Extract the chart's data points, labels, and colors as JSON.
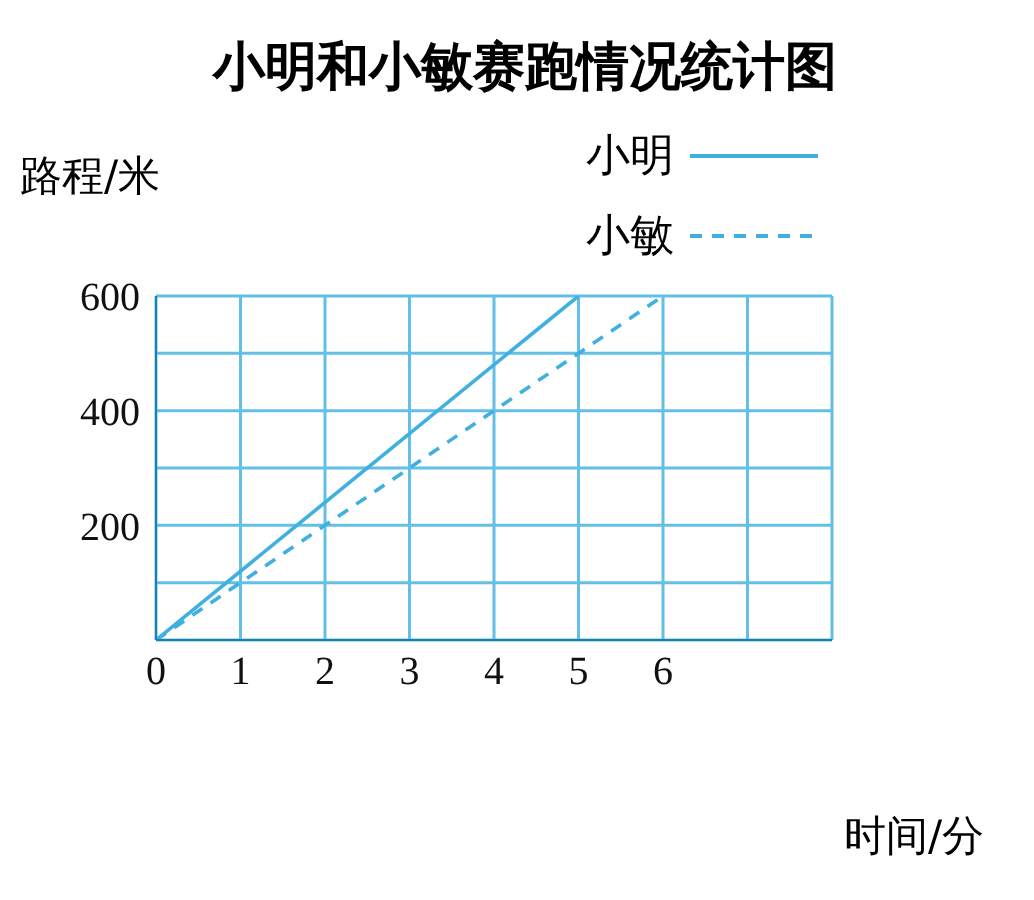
{
  "chart_data": {
    "type": "line",
    "title": "小明和小敏赛跑情况统计图",
    "xlabel": "时间/分",
    "ylabel": "路程/米",
    "xlim": [
      0,
      8
    ],
    "ylim": [
      0,
      600
    ],
    "xticks": [
      0,
      1,
      2,
      3,
      4,
      5,
      6,
      {
        "value": 7,
        "label": null
      },
      {
        "value": 8,
        "label": null
      }
    ],
    "yticks": [
      {
        "value": 0,
        "label": null
      },
      {
        "value": 100,
        "label": null
      },
      200,
      {
        "value": 300,
        "label": null
      },
      400,
      {
        "value": 500,
        "label": null
      },
      600
    ],
    "grid": true,
    "legend": "top right",
    "marker": "none",
    "series": [
      {
        "name": "小明",
        "color": "#3fb0e0",
        "line_style": "solid",
        "x": [
          0,
          5
        ],
        "values": [
          0,
          600
        ]
      },
      {
        "name": "小敏",
        "color": "#3fb0e0",
        "line_style": "dashed",
        "x": [
          0,
          6
        ],
        "values": [
          0,
          600
        ]
      }
    ]
  }
}
